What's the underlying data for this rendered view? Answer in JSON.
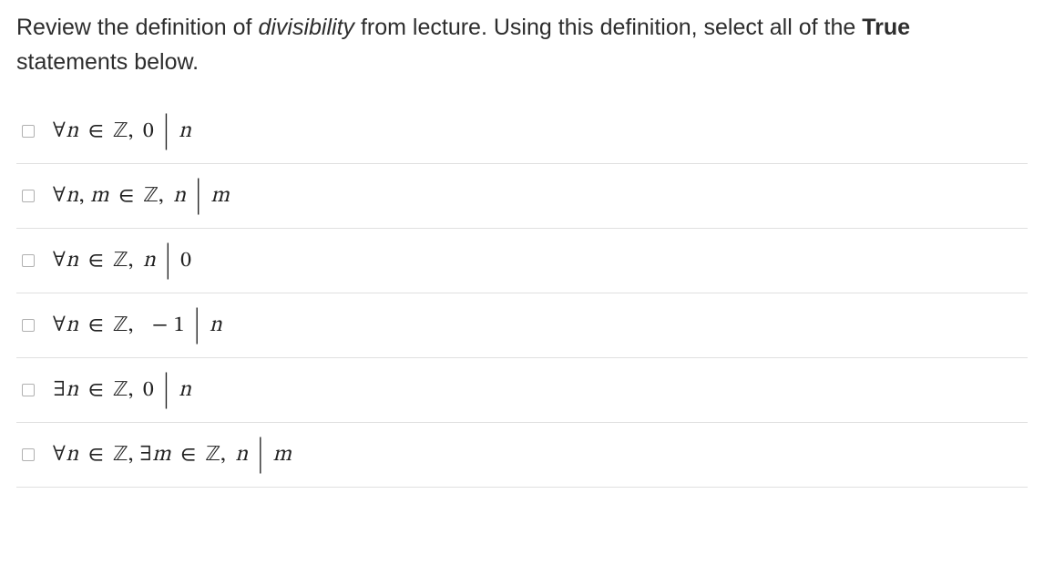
{
  "question": {
    "part1": "Review the definition of ",
    "italic": "divisibility",
    "part2": " from lecture. Using this definition, select all of the ",
    "bold": "True",
    "part3": " statements below."
  },
  "options": [
    {
      "expr": "∀n ∈ ℤ,  0 | n"
    },
    {
      "expr": "∀n, m ∈ ℤ,  n | m"
    },
    {
      "expr": "∀n ∈ ℤ,  n | 0"
    },
    {
      "expr": "∀n ∈ ℤ,  − 1 | n"
    },
    {
      "expr": "∃n ∈ ℤ,  0 | n"
    },
    {
      "expr": "∀n ∈ ℤ, ∃m ∈ ℤ,  n | m"
    }
  ],
  "styling": {
    "text_color": "#2d2d2d",
    "math_color": "#222222",
    "border_color": "#e0e0e0",
    "checkbox_border": "#b0b0b0",
    "background": "#ffffff",
    "question_fontsize": 25,
    "math_fontsize": 24
  }
}
